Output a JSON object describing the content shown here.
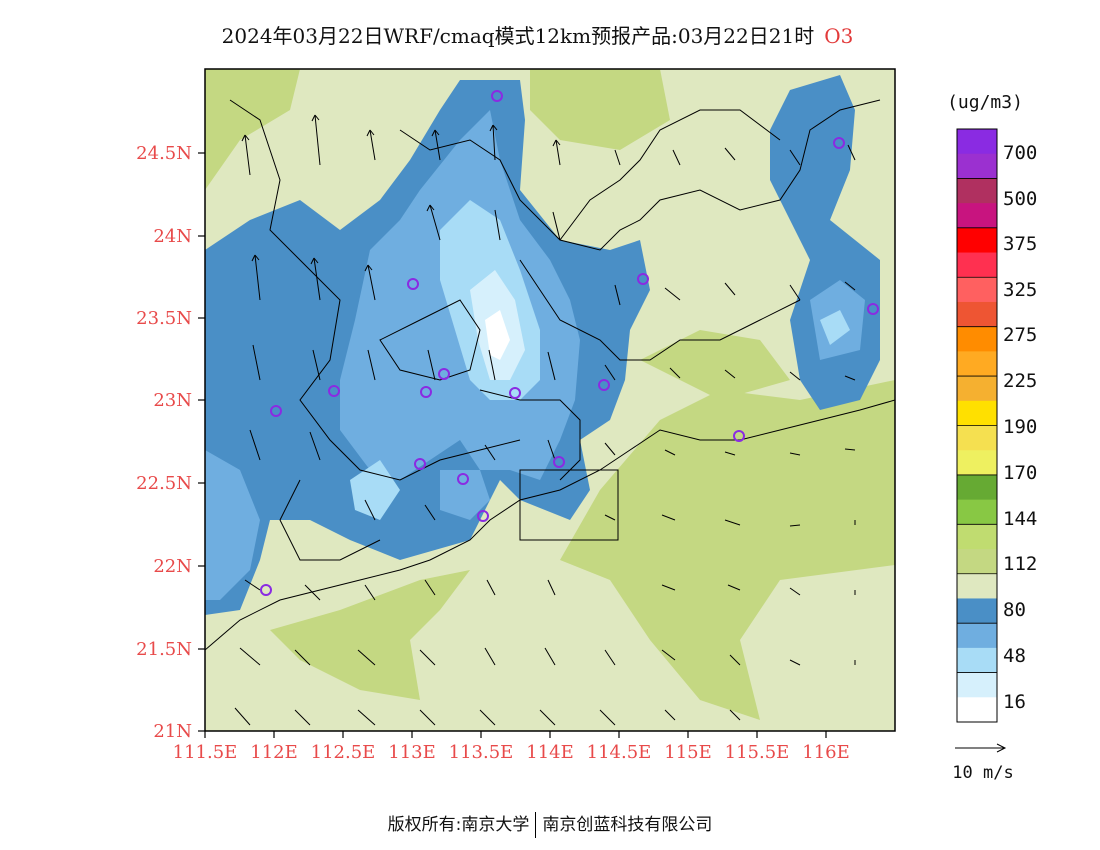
{
  "title": "2024年03月22日WRF/cmaq模式12km预报产品:03月22日21时",
  "species": "O3",
  "unit": "(ug/m3)",
  "lat_labels": [
    "24.5N",
    "24N",
    "23.5N",
    "23N",
    "22.5N",
    "22N",
    "21.5N",
    "21N"
  ],
  "lon_labels": [
    "111.5E",
    "112E",
    "112.5E",
    "113E",
    "113.5E",
    "114E",
    "114.5E",
    "115E",
    "115.5E",
    "116E"
  ],
  "legend": {
    "levels": [
      "700",
      "500",
      "375",
      "325",
      "275",
      "225",
      "190",
      "170",
      "144",
      "112",
      "80",
      "48",
      "16"
    ],
    "colors": [
      "#8a2be2",
      "#9b30d0",
      "#b03060",
      "#c8147f",
      "#ff0000",
      "#ff3050",
      "#ff6060",
      "#ee5533",
      "#ff8c00",
      "#ffaa22",
      "#f5b030",
      "#ffe000",
      "#f5e050",
      "#eef060",
      "#66aa33",
      "#88c844",
      "#c0dc70",
      "#c4d882",
      "#dfe8c0",
      "#4a8fc6",
      "#6faee0",
      "#a8dcf6",
      "#d6f0fc",
      "#ffffff"
    ]
  },
  "wind_ref": "10 m/s",
  "stations_count": 17,
  "colors": {
    "axis_label": "#e84a4a",
    "station": "#8a2be2"
  },
  "footer": {
    "left": "版权所有:南京大学",
    "right": "南京创蓝科技有限公司"
  }
}
